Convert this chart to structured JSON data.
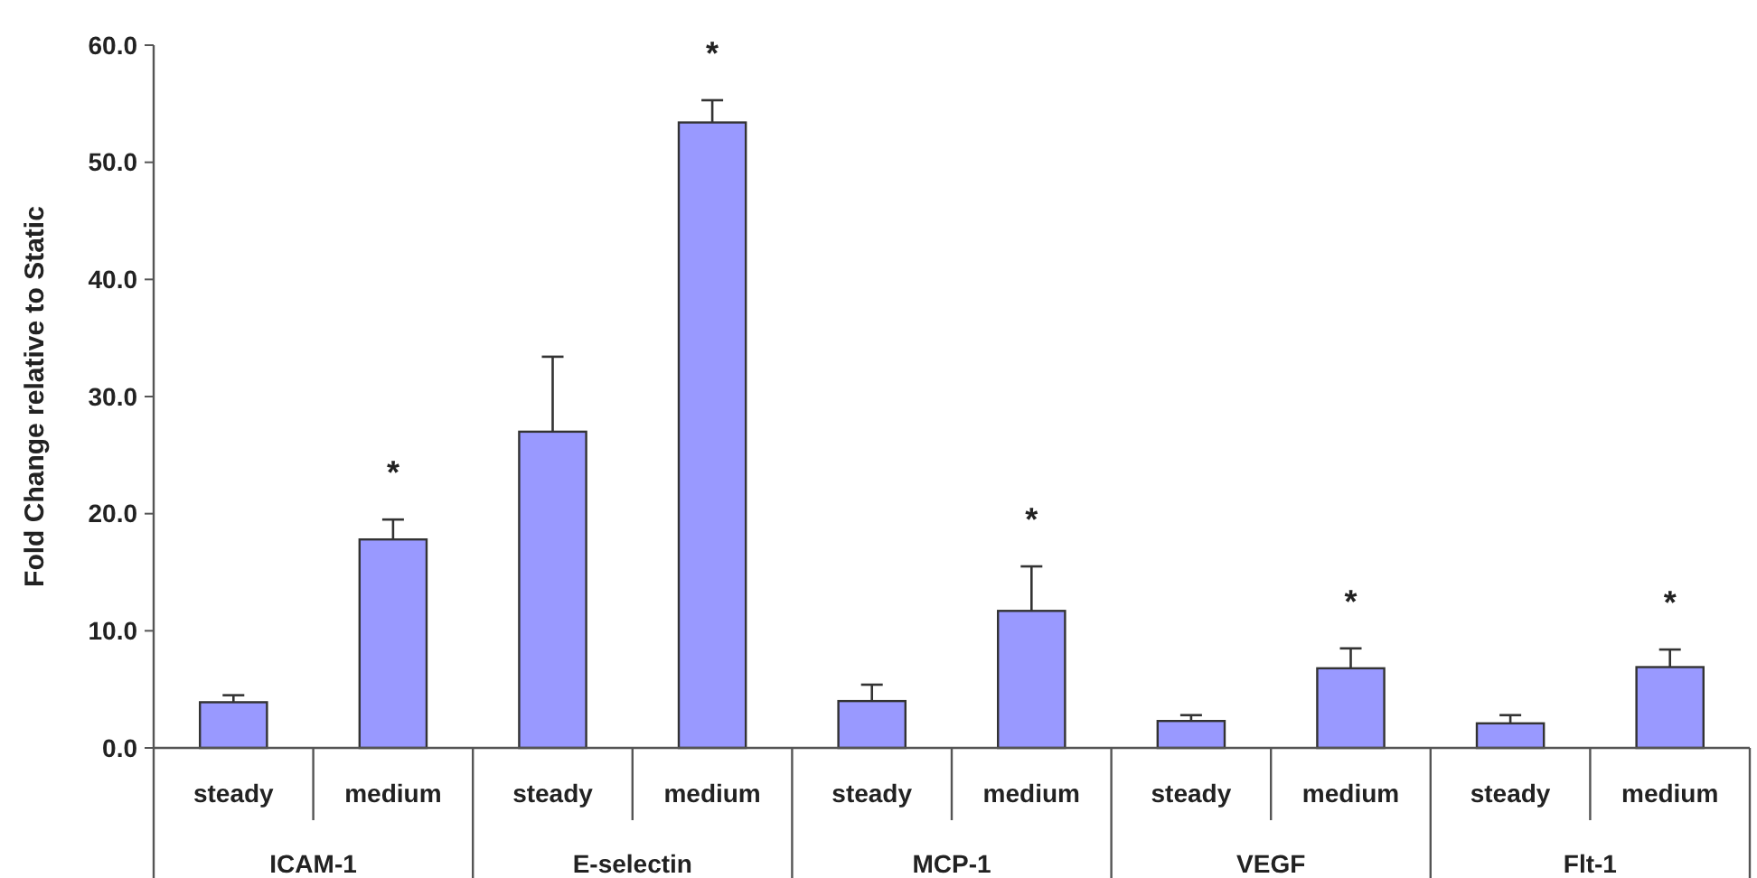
{
  "chart_data": {
    "type": "bar",
    "ylabel": "Fold Change relative to Static",
    "categories": [
      "ICAM-1",
      "E-selectin",
      "MCP-1",
      "VEGF",
      "Flt-1"
    ],
    "series": [
      {
        "name": "steady",
        "color": "#9999ff",
        "values": [
          3.9,
          27.0,
          4.0,
          2.3,
          2.1
        ],
        "errors": [
          [
            3.9,
            4.5
          ],
          [
            27.0,
            33.4
          ],
          [
            4.0,
            5.4
          ],
          [
            2.3,
            2.8
          ],
          [
            2.1,
            2.8
          ]
        ]
      },
      {
        "name": "medium",
        "color": "#9999ff",
        "values": [
          17.8,
          53.4,
          11.7,
          6.8,
          6.9
        ],
        "errors": [
          [
            17.8,
            19.5
          ],
          [
            53.4,
            55.3
          ],
          [
            11.7,
            15.5
          ],
          [
            6.8,
            8.5
          ],
          [
            6.9,
            8.4
          ]
        ]
      }
    ],
    "ylim": [
      0,
      60
    ],
    "yticks": [
      {
        "value": 0,
        "label": "0.0"
      },
      {
        "value": 10,
        "label": "10.0"
      },
      {
        "value": 20,
        "label": "20.0"
      },
      {
        "value": 30,
        "label": "30.0"
      },
      {
        "value": 40,
        "label": "40.0"
      },
      {
        "value": 50,
        "label": "50.0"
      },
      {
        "value": 60,
        "label": "60.0"
      }
    ],
    "annotations": [
      "*",
      "*",
      "*",
      "*",
      "*"
    ]
  }
}
